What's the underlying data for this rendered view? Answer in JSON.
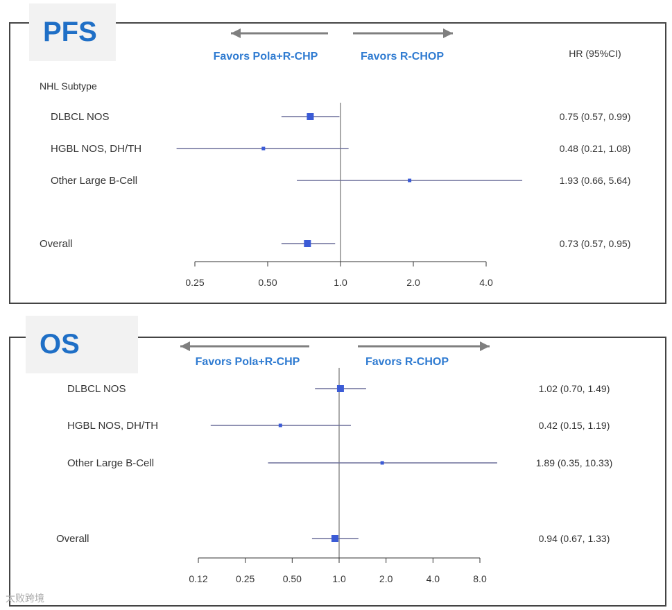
{
  "pfs": {
    "badge": "PFS",
    "favors_left": "Favors Pola+R-CHP",
    "favors_right": "Favors R-CHOP",
    "hr_header": "HR (95%CI)",
    "group_header": "NHL Subtype",
    "ticks": [
      0.25,
      0.5,
      1.0,
      2.0,
      4.0
    ],
    "tick_labels": [
      "0.25",
      "0.50",
      "1.0",
      "2.0",
      "4.0"
    ],
    "rows": [
      {
        "label": "DLBCL NOS",
        "hr": 0.75,
        "lo": 0.57,
        "hi": 0.99,
        "text": "0.75 (0.57, 0.99)",
        "size": "medium"
      },
      {
        "label": "HGBL NOS, DH/TH",
        "hr": 0.48,
        "lo": 0.21,
        "hi": 1.08,
        "text": "0.48 (0.21, 1.08)",
        "size": "small"
      },
      {
        "label": "Other Large B-Cell",
        "hr": 1.93,
        "lo": 0.66,
        "hi": 5.64,
        "text": "1.93 (0.66, 5.64)",
        "size": "small"
      },
      {
        "label": "Overall",
        "hr": 0.73,
        "lo": 0.57,
        "hi": 0.95,
        "text": "0.73 (0.57, 0.95)",
        "size": "medium"
      }
    ]
  },
  "os": {
    "badge": "OS",
    "favors_left": "Favors Pola+R-CHP",
    "favors_right": "Favors R-CHOP",
    "ticks": [
      0.125,
      0.25,
      0.5,
      1.0,
      2.0,
      4.0,
      8.0
    ],
    "tick_labels": [
      "0.12",
      "0.25",
      "0.50",
      "1.0",
      "2.0",
      "4.0",
      "8.0"
    ],
    "rows": [
      {
        "label": "DLBCL NOS",
        "hr": 1.02,
        "lo": 0.7,
        "hi": 1.49,
        "text": "1.02 (0.70,  1.49)",
        "size": "medium"
      },
      {
        "label": "HGBL NOS, DH/TH",
        "hr": 0.42,
        "lo": 0.15,
        "hi": 1.19,
        "text": "0.42 (0.15,  1.19)",
        "size": "small"
      },
      {
        "label": "Other Large B-Cell",
        "hr": 1.89,
        "lo": 0.35,
        "hi": 10.33,
        "text": "1.89 (0.35, 10.33)",
        "size": "small"
      },
      {
        "label": "Overall",
        "hr": 0.94,
        "lo": 0.67,
        "hi": 1.33,
        "text": "0.94 (0.67, 1.33)",
        "size": "medium"
      }
    ]
  },
  "chart_data": [
    {
      "type": "forest",
      "title": "PFS",
      "xscale": "log",
      "xlim": [
        0.25,
        4.0
      ],
      "reference_line": 1.0,
      "categories": [
        "DLBCL NOS",
        "HGBL NOS, DH/TH",
        "Other Large B-Cell",
        "Overall"
      ],
      "hr": [
        0.75,
        0.48,
        1.93,
        0.73
      ],
      "ci_low": [
        0.57,
        0.21,
        0.66,
        0.57
      ],
      "ci_high": [
        0.99,
        1.08,
        5.64,
        0.95
      ]
    },
    {
      "type": "forest",
      "title": "OS",
      "xscale": "log",
      "xlim": [
        0.125,
        8.0
      ],
      "reference_line": 1.0,
      "categories": [
        "DLBCL NOS",
        "HGBL NOS, DH/TH",
        "Other Large B-Cell",
        "Overall"
      ],
      "hr": [
        1.02,
        0.42,
        1.89,
        0.94
      ],
      "ci_low": [
        0.7,
        0.15,
        0.35,
        0.67
      ],
      "ci_high": [
        1.49,
        1.19,
        10.33,
        1.33
      ]
    }
  ],
  "colors": {
    "accent": "#2f7bd1",
    "marker": "#3b5bd6",
    "line": "#6b6f9a",
    "text": "#333333"
  },
  "watermark": "太败跨境"
}
